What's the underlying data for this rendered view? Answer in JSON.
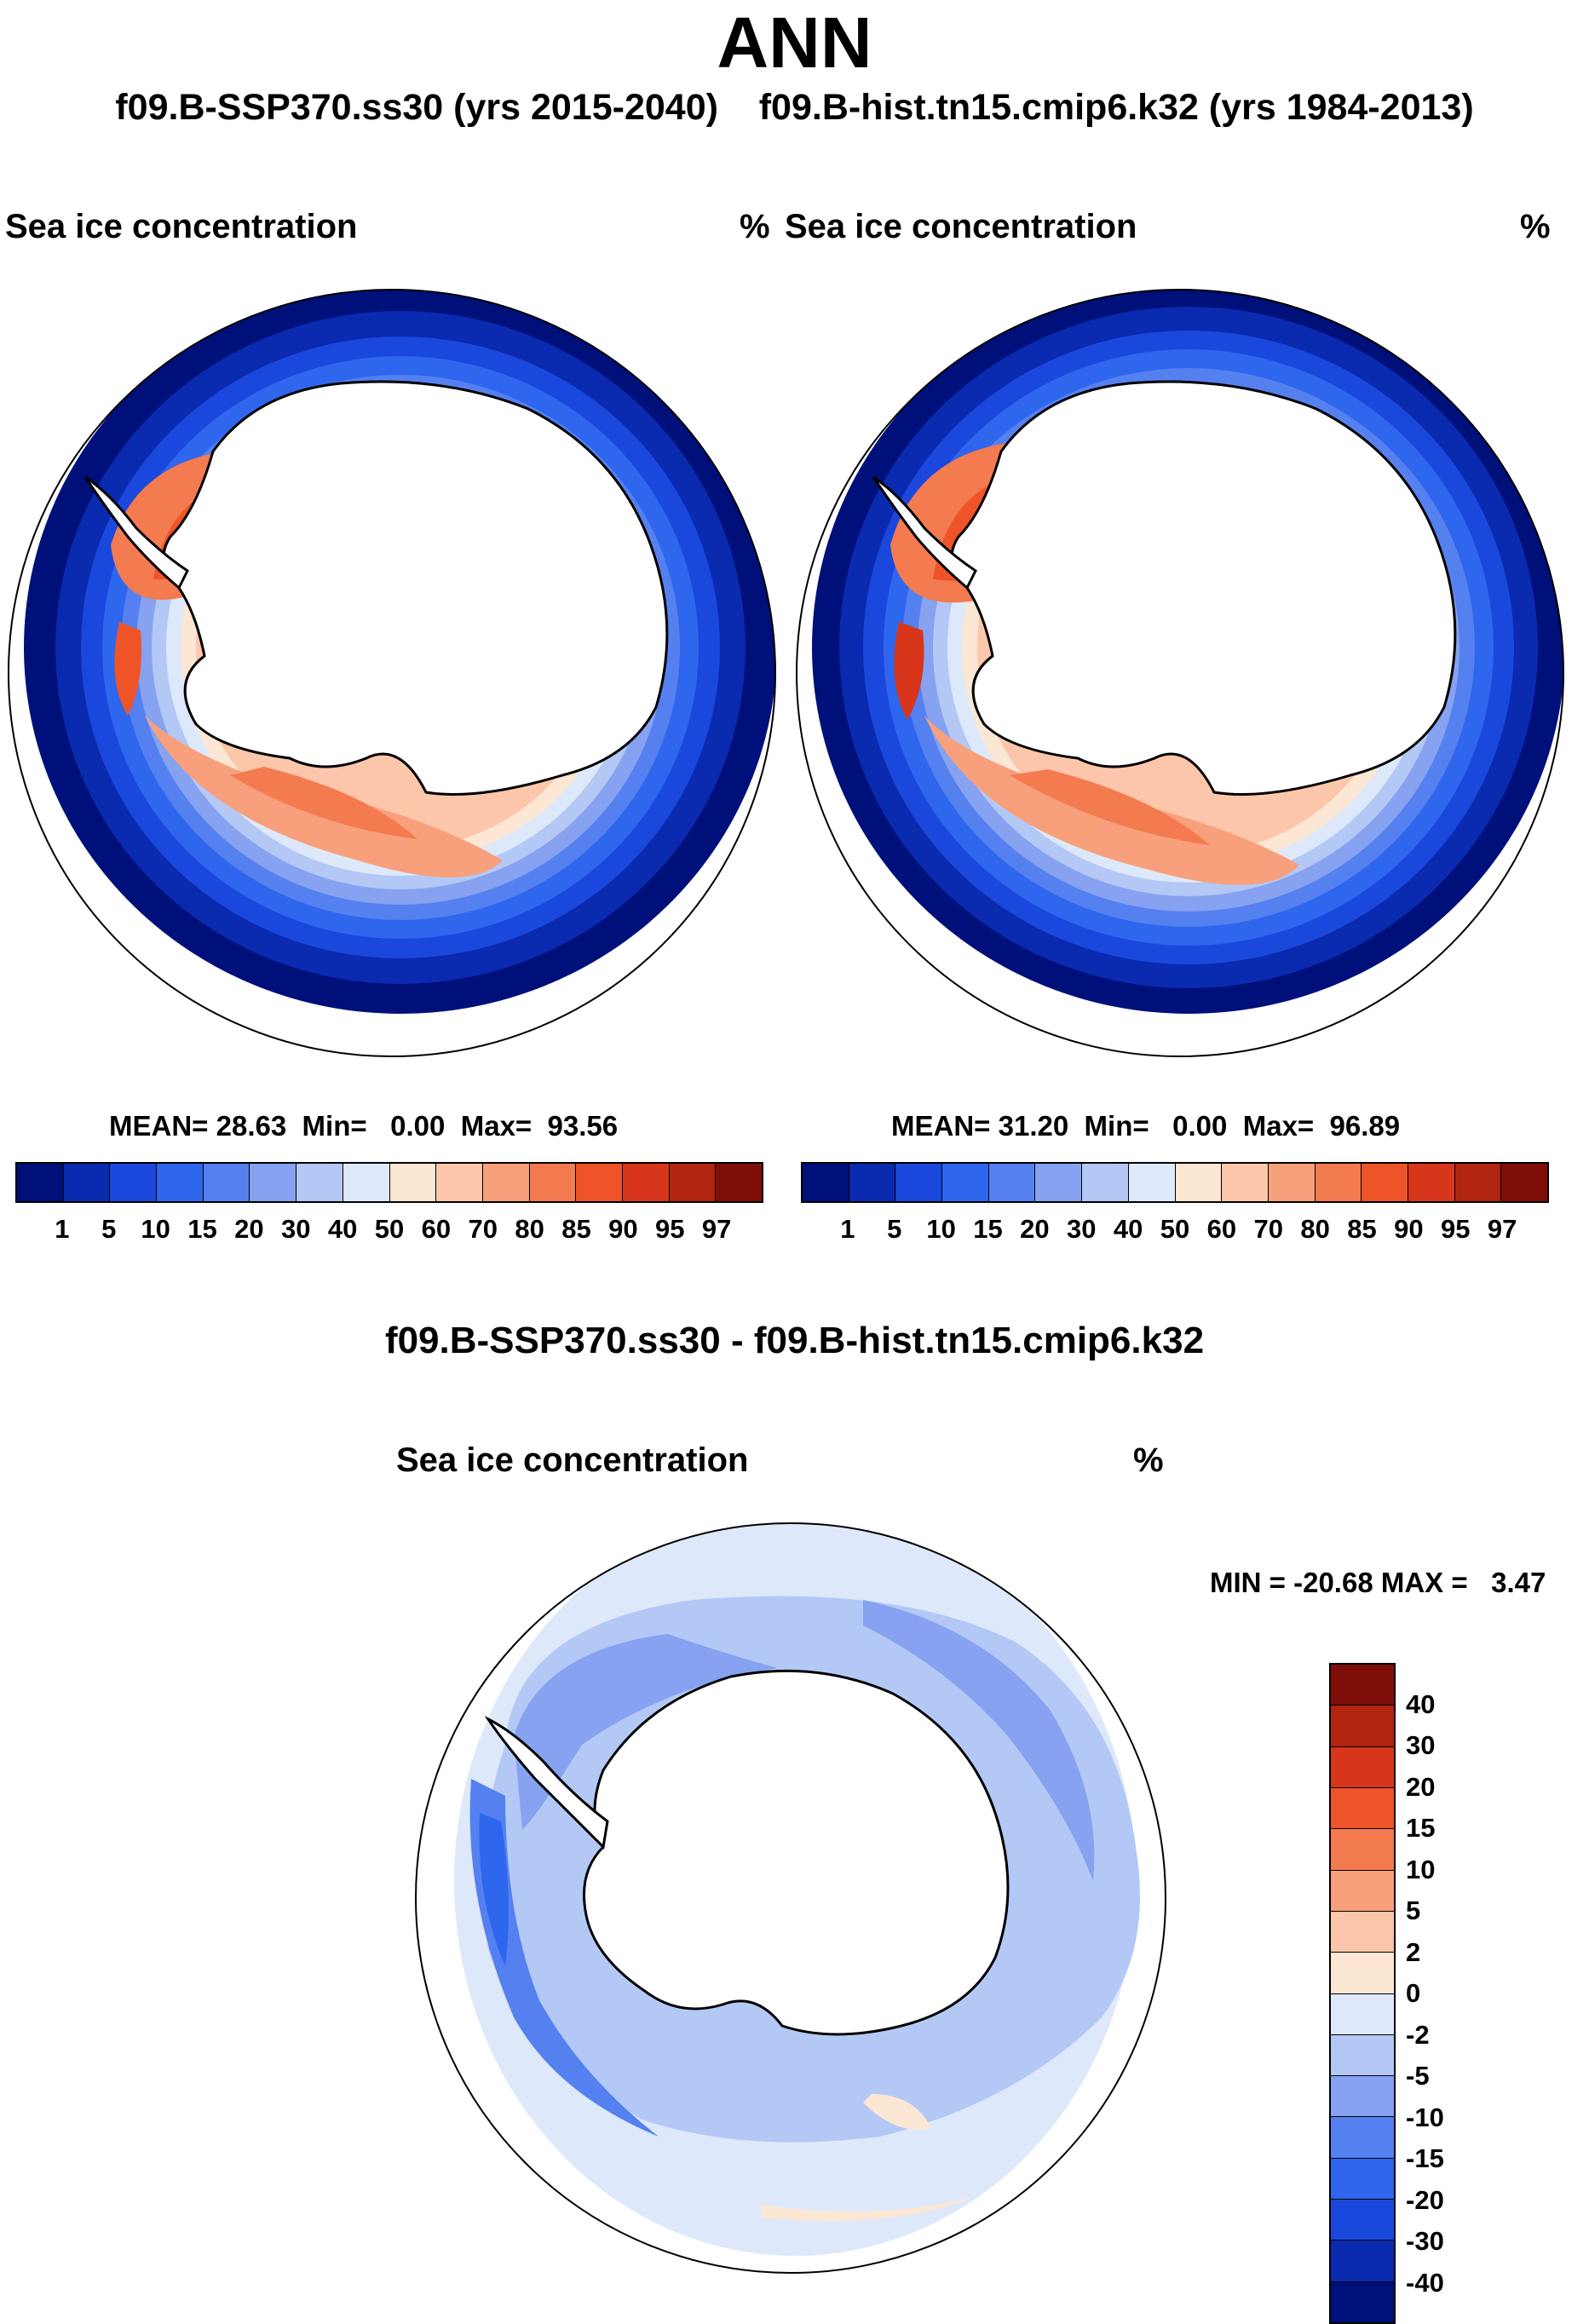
{
  "figure": {
    "title": "ANN",
    "subtitle_left": "f09.B-SSP370.ss30 (yrs 2015-2040)",
    "subtitle_right": "f09.B-hist.tn15.cmip6.k32 (yrs 1984-2013)",
    "diff_title": "f09.B-SSP370.ss30 - f09.B-hist.tn15.cmip6.k32"
  },
  "panels": {
    "left": {
      "variable": "Sea ice concentration",
      "units": "%",
      "stats": {
        "mean_label": "MEAN=",
        "mean": "28.63",
        "min_label": "Min=",
        "min": "0.00",
        "max_label": "Max=",
        "max": "93.56"
      }
    },
    "right": {
      "variable": "Sea ice concentration",
      "units": "%",
      "stats": {
        "mean_label": "MEAN=",
        "mean": "31.20",
        "min_label": "Min=",
        "min": "0.00",
        "max_label": "Max=",
        "max": "96.89"
      }
    },
    "diff": {
      "variable": "Sea ice concentration",
      "units": "%",
      "stats": {
        "min_label": "MIN =",
        "min": "-20.68",
        "max_label": "MAX =",
        "max": "3.47"
      }
    }
  },
  "colorbars": {
    "field": {
      "labels": [
        "1",
        "5",
        "10",
        "15",
        "20",
        "30",
        "40",
        "50",
        "60",
        "70",
        "80",
        "85",
        "90",
        "95",
        "97"
      ],
      "colors": [
        "#00107a",
        "#0a2ab0",
        "#1a48dc",
        "#2f66ee",
        "#5580f0",
        "#86a2f0",
        "#b4c8f6",
        "#dde9fb",
        "#fce6d4",
        "#fbc6aa",
        "#f8a07c",
        "#f47a50",
        "#ee5428",
        "#d7361a",
        "#b02410",
        "#800e08"
      ]
    },
    "diff": {
      "labels": [
        "40",
        "30",
        "20",
        "15",
        "10",
        "5",
        "2",
        "0",
        "-2",
        "-5",
        "-10",
        "-15",
        "-20",
        "-30",
        "-40"
      ],
      "colors": [
        "#800e08",
        "#b02410",
        "#d7361a",
        "#ee5428",
        "#f47a50",
        "#f8a07c",
        "#fbc6aa",
        "#fce6d4",
        "#dde9fb",
        "#b4c8f6",
        "#86a2f0",
        "#5580f0",
        "#2f66ee",
        "#1a48dc",
        "#0a2ab0",
        "#00107a"
      ]
    }
  }
}
